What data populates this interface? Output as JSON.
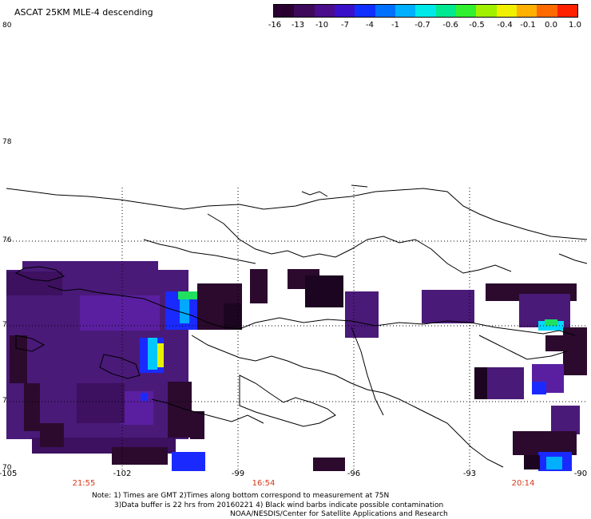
{
  "header": {
    "title": "ASCAT 25KM MLE-4 descending"
  },
  "colorbar": {
    "colors": [
      "#2a0030",
      "#3d0a5a",
      "#4a0d8c",
      "#3a10c8",
      "#1030ff",
      "#0070ff",
      "#00b0ff",
      "#00e8e8",
      "#00e890",
      "#30f030",
      "#a0f000",
      "#f0f000",
      "#ffb000",
      "#ff6a00",
      "#ff2000"
    ],
    "labels": [
      "-16",
      "-13",
      "-10",
      "-7",
      "-4",
      "-1",
      "-0.7",
      "-0.6",
      "-0.5",
      "-0.4",
      "-0.1",
      "0.0",
      "1.0"
    ]
  },
  "axes": {
    "lat_labels": [
      "80",
      "78",
      "76",
      "74",
      "72",
      "70"
    ],
    "lon_labels": [
      "-105",
      "-102",
      "-99",
      "-96",
      "-93",
      "-90"
    ],
    "time_labels": [
      "21:55",
      "16:54",
      "20:14"
    ]
  },
  "notes": {
    "line1": "Note: 1) Times are GMT 2)Times along bottom correspond to measurement at 75N",
    "line2": "3)Data buffer is 22 hrs from 20160221 4) Black wind barbs indicate possible contamination",
    "line3": "NOAA/NESDIS/Center for Satellite Applications and Research"
  },
  "colors": {
    "dark": "#2b0a2e",
    "purple": "#4a1a78",
    "violet": "#5a1fa0",
    "blue": "#1a2aff",
    "cyan": "#00d8ff",
    "green": "#20e060",
    "yellow": "#e8f000"
  }
}
